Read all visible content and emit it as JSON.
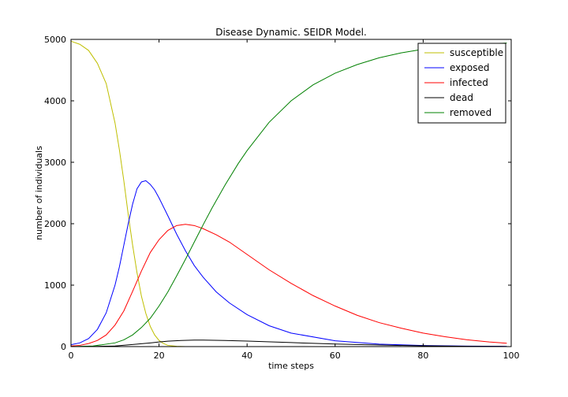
{
  "chart_data": {
    "type": "line",
    "title": "Disease Dynamic. SEIDR Model.",
    "xlabel": "time steps",
    "ylabel": "number of individuals",
    "xlim": [
      0,
      100
    ],
    "ylim": [
      0,
      5000
    ],
    "xticks": [
      0,
      20,
      40,
      60,
      80,
      100
    ],
    "yticks": [
      0,
      1000,
      2000,
      3000,
      4000,
      5000
    ],
    "legend_position": "top-right",
    "series": [
      {
        "name": "susceptible",
        "color": "#bfbf00",
        "x": [
          0,
          2,
          4,
          6,
          8,
          10,
          11,
          12,
          13,
          14,
          15,
          16,
          17,
          18,
          19,
          20,
          21,
          22,
          24,
          26,
          28,
          30,
          40,
          60,
          80,
          99
        ],
        "y": [
          4970,
          4920,
          4820,
          4610,
          4280,
          3640,
          3200,
          2700,
          2150,
          1650,
          1200,
          820,
          540,
          330,
          190,
          100,
          50,
          20,
          5,
          0,
          0,
          0,
          0,
          0,
          0,
          0
        ]
      },
      {
        "name": "exposed",
        "color": "#0000ff",
        "x": [
          0,
          2,
          4,
          6,
          8,
          10,
          11,
          12,
          13,
          14,
          15,
          16,
          17,
          18,
          19,
          20,
          22,
          24,
          26,
          28,
          30,
          33,
          36,
          40,
          45,
          50,
          60,
          70,
          80,
          90,
          99
        ],
        "y": [
          30,
          60,
          130,
          280,
          550,
          1000,
          1300,
          1650,
          2000,
          2320,
          2570,
          2680,
          2700,
          2640,
          2550,
          2420,
          2130,
          1830,
          1560,
          1320,
          1130,
          890,
          710,
          520,
          340,
          220,
          95,
          40,
          18,
          8,
          4
        ]
      },
      {
        "name": "infected",
        "color": "#ff0000",
        "x": [
          0,
          2,
          4,
          6,
          8,
          10,
          12,
          14,
          16,
          18,
          20,
          22,
          24,
          26,
          28,
          30,
          33,
          36,
          40,
          45,
          50,
          55,
          60,
          65,
          70,
          75,
          80,
          85,
          90,
          95,
          99
        ],
        "y": [
          10,
          20,
          50,
          100,
          190,
          350,
          580,
          900,
          1230,
          1530,
          1740,
          1890,
          1970,
          1990,
          1970,
          1920,
          1820,
          1700,
          1500,
          1250,
          1030,
          830,
          660,
          510,
          390,
          300,
          220,
          160,
          110,
          75,
          55
        ]
      },
      {
        "name": "dead",
        "color": "#000000",
        "x": [
          0,
          5,
          10,
          15,
          18,
          20,
          22,
          25,
          28,
          30,
          35,
          40,
          50,
          60,
          70,
          80,
          90,
          99
        ],
        "y": [
          0,
          2,
          10,
          40,
          60,
          75,
          88,
          100,
          105,
          105,
          100,
          90,
          65,
          42,
          25,
          12,
          5,
          2
        ]
      },
      {
        "name": "removed",
        "color": "#008000",
        "x": [
          0,
          5,
          10,
          12,
          14,
          16,
          18,
          20,
          22,
          24,
          26,
          28,
          30,
          32,
          35,
          38,
          40,
          45,
          50,
          55,
          60,
          65,
          70,
          75,
          80,
          85,
          90,
          95,
          99
        ],
        "y": [
          0,
          10,
          60,
          110,
          190,
          310,
          460,
          660,
          890,
          1150,
          1420,
          1700,
          1980,
          2250,
          2630,
          2980,
          3190,
          3650,
          4000,
          4260,
          4450,
          4590,
          4700,
          4780,
          4840,
          4880,
          4910,
          4930,
          4940
        ]
      }
    ]
  }
}
